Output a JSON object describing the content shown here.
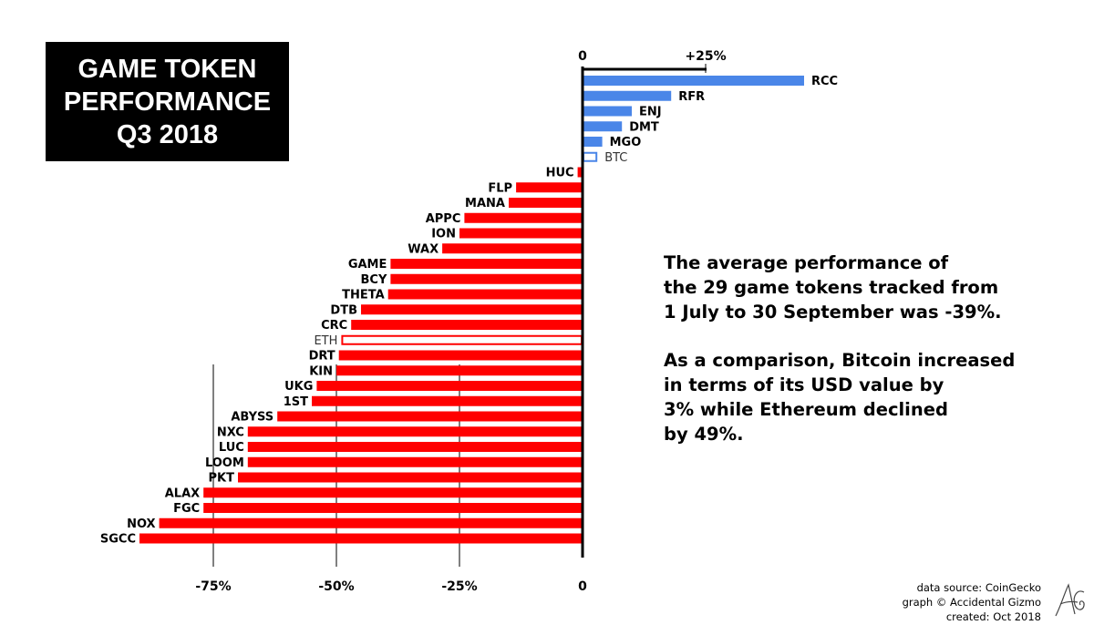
{
  "title_lines": [
    "GAME TOKEN",
    "PERFORMANCE",
    "Q3 2018"
  ],
  "summary": {
    "paragraph1": "The average performance of\nthe 29 game tokens tracked from\n1 July to 30 September was -39%.",
    "paragraph2": "As a comparison, Bitcoin increased\nin terms of its USD value by\n3% while Ethereum declined\nby 49%."
  },
  "credits": {
    "source": "data source: CoinGecko",
    "graph": "graph © Accidental Gizmo",
    "created": "created: Oct 2018"
  },
  "colors": {
    "positive": "#4a86e8",
    "negative": "#ff0000",
    "axis": "#000000",
    "title_bg": "#000000",
    "title_text": "#ffffff"
  },
  "chart_data": {
    "type": "bar",
    "orientation": "horizontal",
    "unit": "%",
    "top_axis_ticks": [
      {
        "value": 0,
        "label": "0"
      },
      {
        "value": 25,
        "label": "+25%"
      }
    ],
    "bottom_axis_ticks": [
      {
        "value": -75,
        "label": "-75%"
      },
      {
        "value": -50,
        "label": "-50%"
      },
      {
        "value": -25,
        "label": "-25%"
      },
      {
        "value": 0,
        "label": "0"
      }
    ],
    "categories": [
      "RCC",
      "RFR",
      "ENJ",
      "DMT",
      "MGO",
      "BTC",
      "HUC",
      "FLP",
      "MANA",
      "APPC",
      "ION",
      "WAX",
      "GAME",
      "BCY",
      "THETA",
      "DTB",
      "CRC",
      "ETH",
      "DRT",
      "KIN",
      "UKG",
      "1ST",
      "ABYSS",
      "NXC",
      "LUC",
      "LOOM",
      "PKT",
      "ALAX",
      "FGC",
      "NOX",
      "SGCC"
    ],
    "values": [
      45,
      18,
      10,
      8,
      4,
      3,
      -1,
      -13.5,
      -15,
      -24,
      -25,
      -28.5,
      -39,
      -39,
      -39.5,
      -45,
      -47,
      -49,
      -49.5,
      -50,
      -54,
      -55,
      -62,
      -68,
      -68,
      -68,
      -70,
      -77,
      -77,
      -86,
      -90
    ],
    "comparison_tokens": [
      "BTC",
      "ETH"
    ]
  }
}
